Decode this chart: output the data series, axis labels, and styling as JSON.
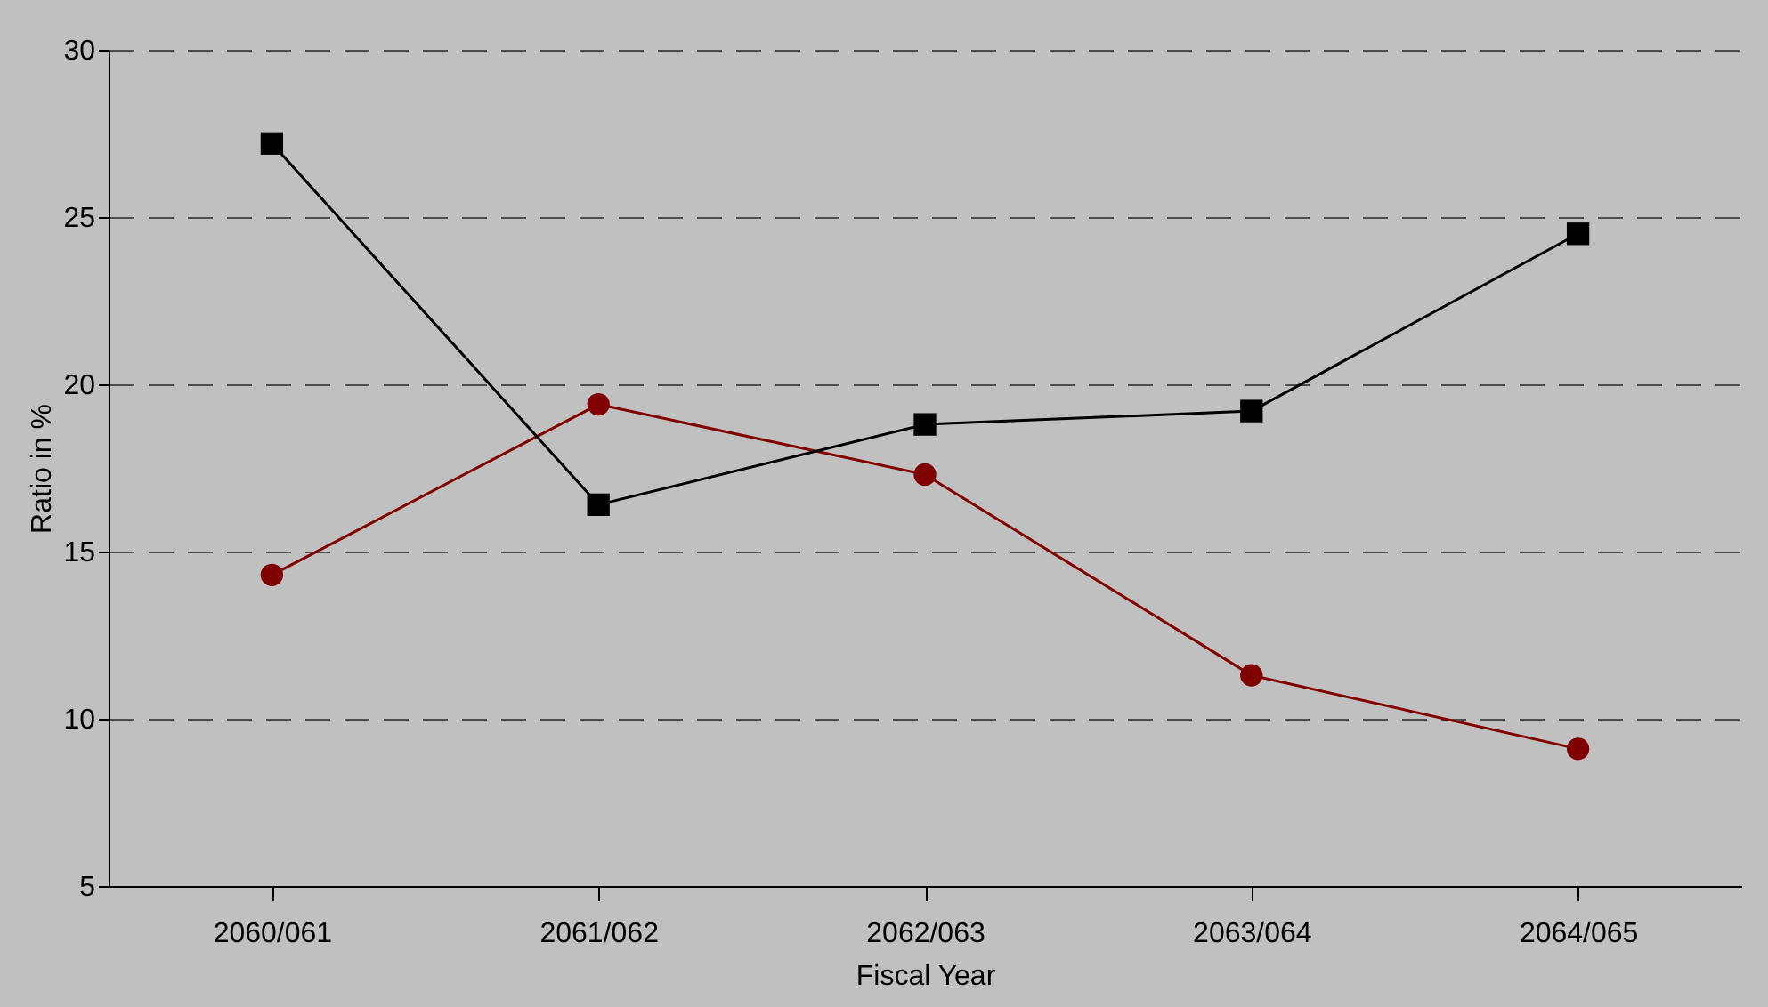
{
  "chart_data": {
    "type": "line",
    "xlabel": "Fiscal Year",
    "ylabel": "Ratio in %",
    "categories": [
      "2060/061",
      "2061/062",
      "2062/063",
      "2063/064",
      "2064/065"
    ],
    "series": [
      {
        "color": "#800000",
        "marker": "circle",
        "values": [
          14.3,
          19.4,
          17.3,
          11.3,
          9.1
        ]
      },
      {
        "color": "#000000",
        "marker": "square",
        "values": [
          27.2,
          16.4,
          18.8,
          19.2,
          24.5
        ]
      }
    ],
    "ylim": [
      5,
      30
    ],
    "yticks": [
      5,
      10,
      15,
      20,
      25,
      30
    ],
    "grid": "y",
    "line_style": "solid"
  }
}
